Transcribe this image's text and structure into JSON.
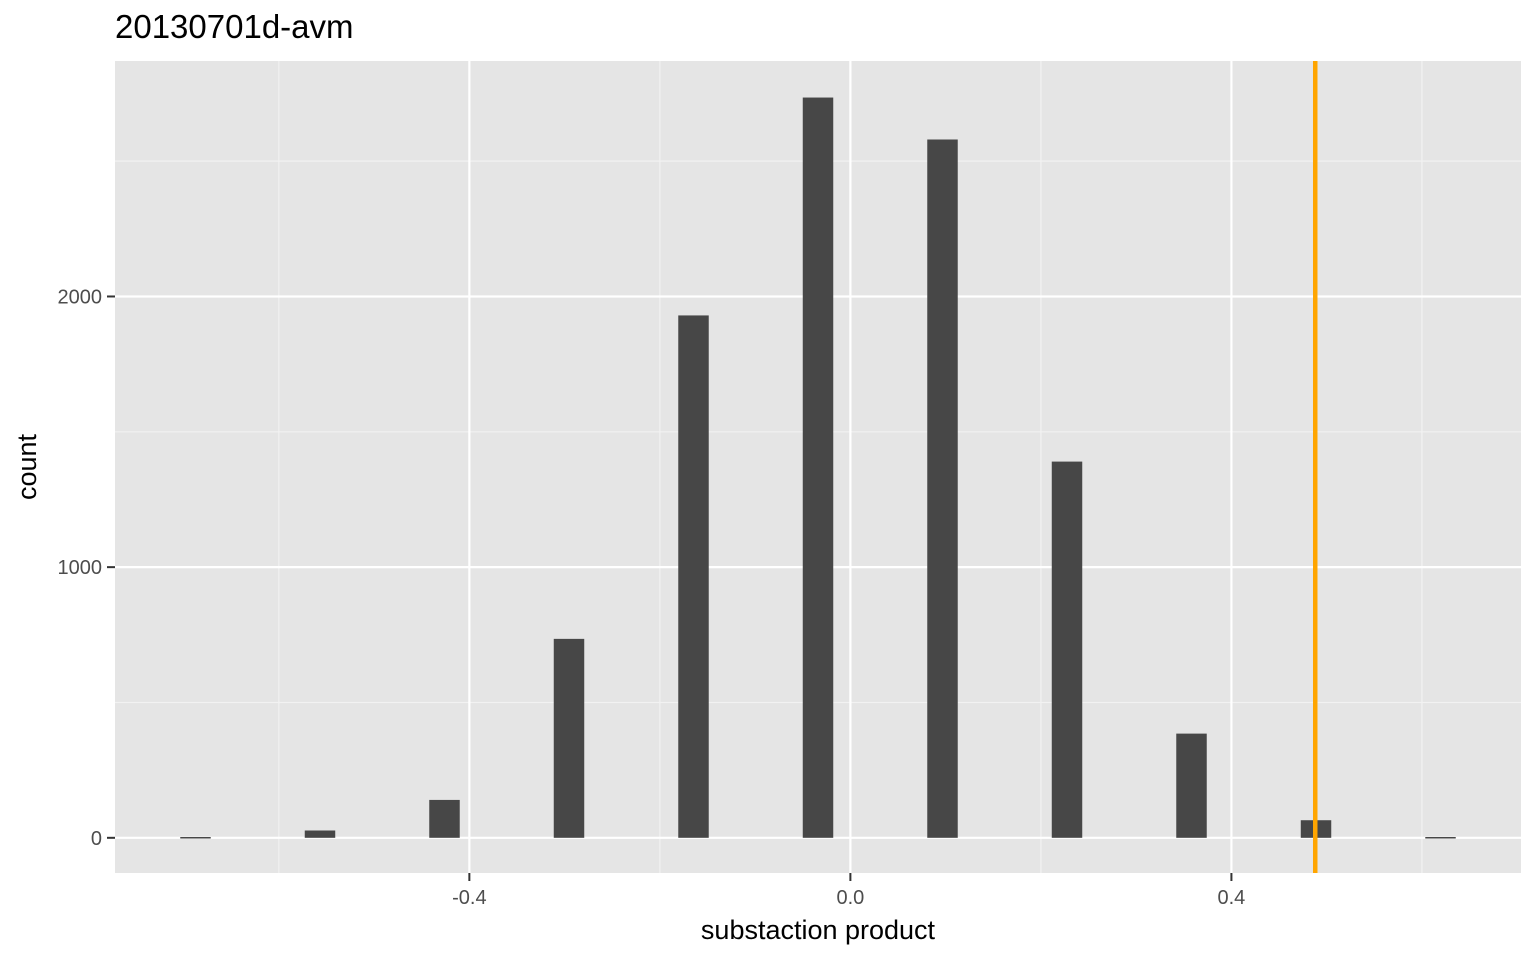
{
  "chart_data": {
    "type": "bar",
    "title": "20130701d-avm",
    "xlabel": "substaction product",
    "ylabel": "count",
    "x": [
      -0.6875,
      -0.5568,
      -0.4261,
      -0.2954,
      -0.1647,
      -0.034,
      0.0967,
      0.2274,
      0.3581,
      0.4888,
      0.6195
    ],
    "values": [
      3,
      27,
      140,
      735,
      1930,
      2735,
      2580,
      1390,
      385,
      65,
      3
    ],
    "bin_width": 0.032,
    "xlim": [
      -0.772,
      0.704
    ],
    "ylim": [
      -130,
      2870
    ],
    "x_ticks": [
      -0.4,
      0.0,
      0.4
    ],
    "x_tick_labels": [
      "-0.4",
      "0.0",
      "0.4"
    ],
    "y_ticks": [
      0,
      1000,
      2000
    ],
    "y_tick_labels": [
      "0",
      "1000",
      "2000"
    ],
    "reference_line": {
      "x": 0.488,
      "color": "#FFA500"
    },
    "bar_color": "#474747",
    "panel_color": "#E5E5E5",
    "grid": true
  }
}
